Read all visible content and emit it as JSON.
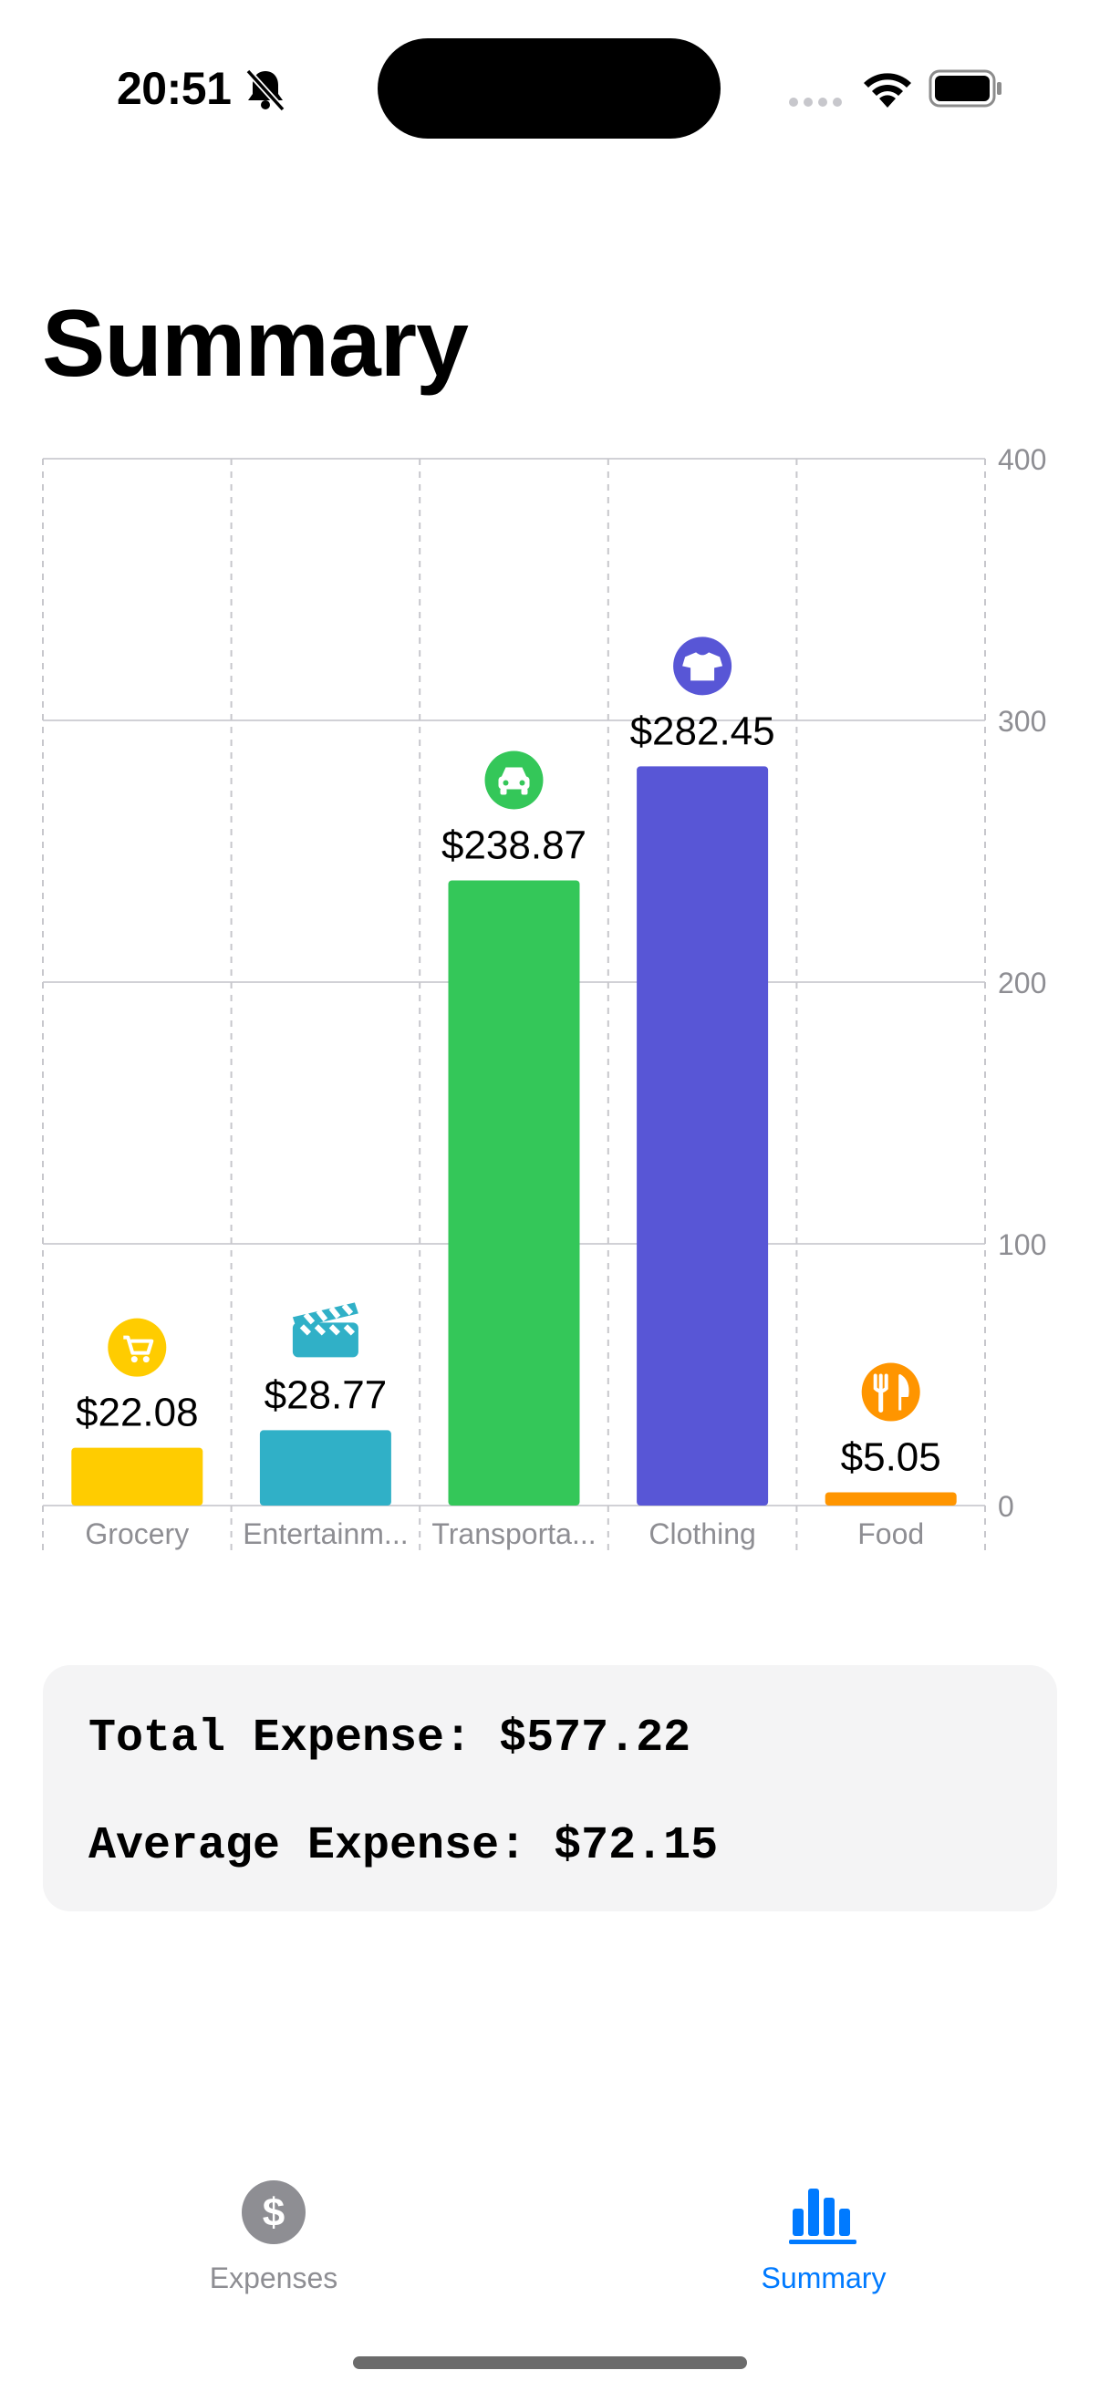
{
  "status_bar": {
    "time": "20:51",
    "icons": [
      "bell-slash-icon",
      "cellular-dots-icon",
      "wifi-icon",
      "battery-icon"
    ]
  },
  "page": {
    "title": "Summary"
  },
  "chart_data": {
    "type": "bar",
    "categories": [
      "Grocery",
      "Entertainm...",
      "Transporta...",
      "Clothing",
      "Food"
    ],
    "values": [
      22.08,
      28.77,
      238.87,
      282.45,
      5.05
    ],
    "value_labels": [
      "$22.08",
      "$28.77",
      "$238.87",
      "$282.45",
      "$5.05"
    ],
    "colors": [
      "#ffcc00",
      "#30b0c7",
      "#34c759",
      "#5856d6",
      "#ff9500"
    ],
    "icons": [
      "cart-icon",
      "clapperboard-icon",
      "car-icon",
      "tshirt-icon",
      "fork-knife-icon"
    ],
    "ylim": [
      0,
      400
    ],
    "yticks": [
      0,
      100,
      200,
      300,
      400
    ],
    "y_axis_position": "right",
    "grid": true
  },
  "stats": {
    "total": "Total Expense: $577.22",
    "average": "Average Expense: $72.15"
  },
  "tab_bar": {
    "tabs": [
      {
        "label": "Expenses",
        "icon": "dollar-circle-icon",
        "selected": false,
        "color": "#8e8e93"
      },
      {
        "label": "Summary",
        "icon": "bar-chart-icon",
        "selected": true,
        "color": "#007aff"
      }
    ]
  }
}
